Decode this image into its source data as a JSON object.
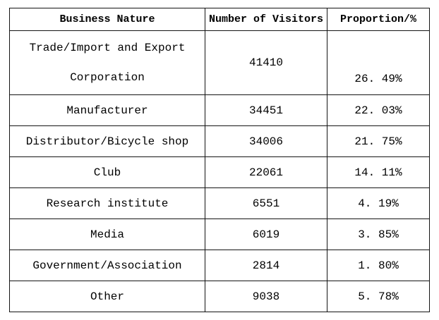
{
  "page": {
    "background": "#ffffff",
    "border_color": "#141414",
    "text_color": "#000000"
  },
  "table": {
    "headers": [
      "Business Nature",
      "Number of Visitors",
      "Proportion/%"
    ],
    "rows": [
      {
        "name": "Trade/Import and Export Corporation",
        "name_line1": "Trade/Import and Export",
        "name_line2": "Corporation",
        "visitors": "41410",
        "proportion": "26. 49%"
      },
      {
        "name": "Manufacturer",
        "visitors": "34451",
        "proportion": "22. 03%"
      },
      {
        "name": "Distributor/Bicycle shop",
        "visitors": "34006",
        "proportion": "21. 75%"
      },
      {
        "name": "Club",
        "visitors": "22061",
        "proportion": "14. 11%"
      },
      {
        "name": "Research institute",
        "visitors": "6551",
        "proportion": "4. 19%"
      },
      {
        "name": "Media",
        "visitors": "6019",
        "proportion": "3. 85%"
      },
      {
        "name": "Government/Association",
        "visitors": "2814",
        "proportion": "1. 80%"
      },
      {
        "name": "Other",
        "visitors": "9038",
        "proportion": "5. 78%"
      }
    ]
  },
  "chart_data": {
    "type": "table",
    "title": "",
    "columns": [
      "Business Nature",
      "Number of Visitors",
      "Proportion/%"
    ],
    "categories": [
      "Trade/Import and Export Corporation",
      "Manufacturer",
      "Distributor/Bicycle shop",
      "Club",
      "Research institute",
      "Media",
      "Government/Association",
      "Other"
    ],
    "series": [
      {
        "name": "Number of Visitors",
        "values": [
          41410,
          34451,
          34006,
          22061,
          6551,
          6019,
          2814,
          9038
        ]
      },
      {
        "name": "Proportion/%",
        "values": [
          26.49,
          22.03,
          21.75,
          14.11,
          4.19,
          3.85,
          1.8,
          5.78
        ]
      }
    ]
  }
}
